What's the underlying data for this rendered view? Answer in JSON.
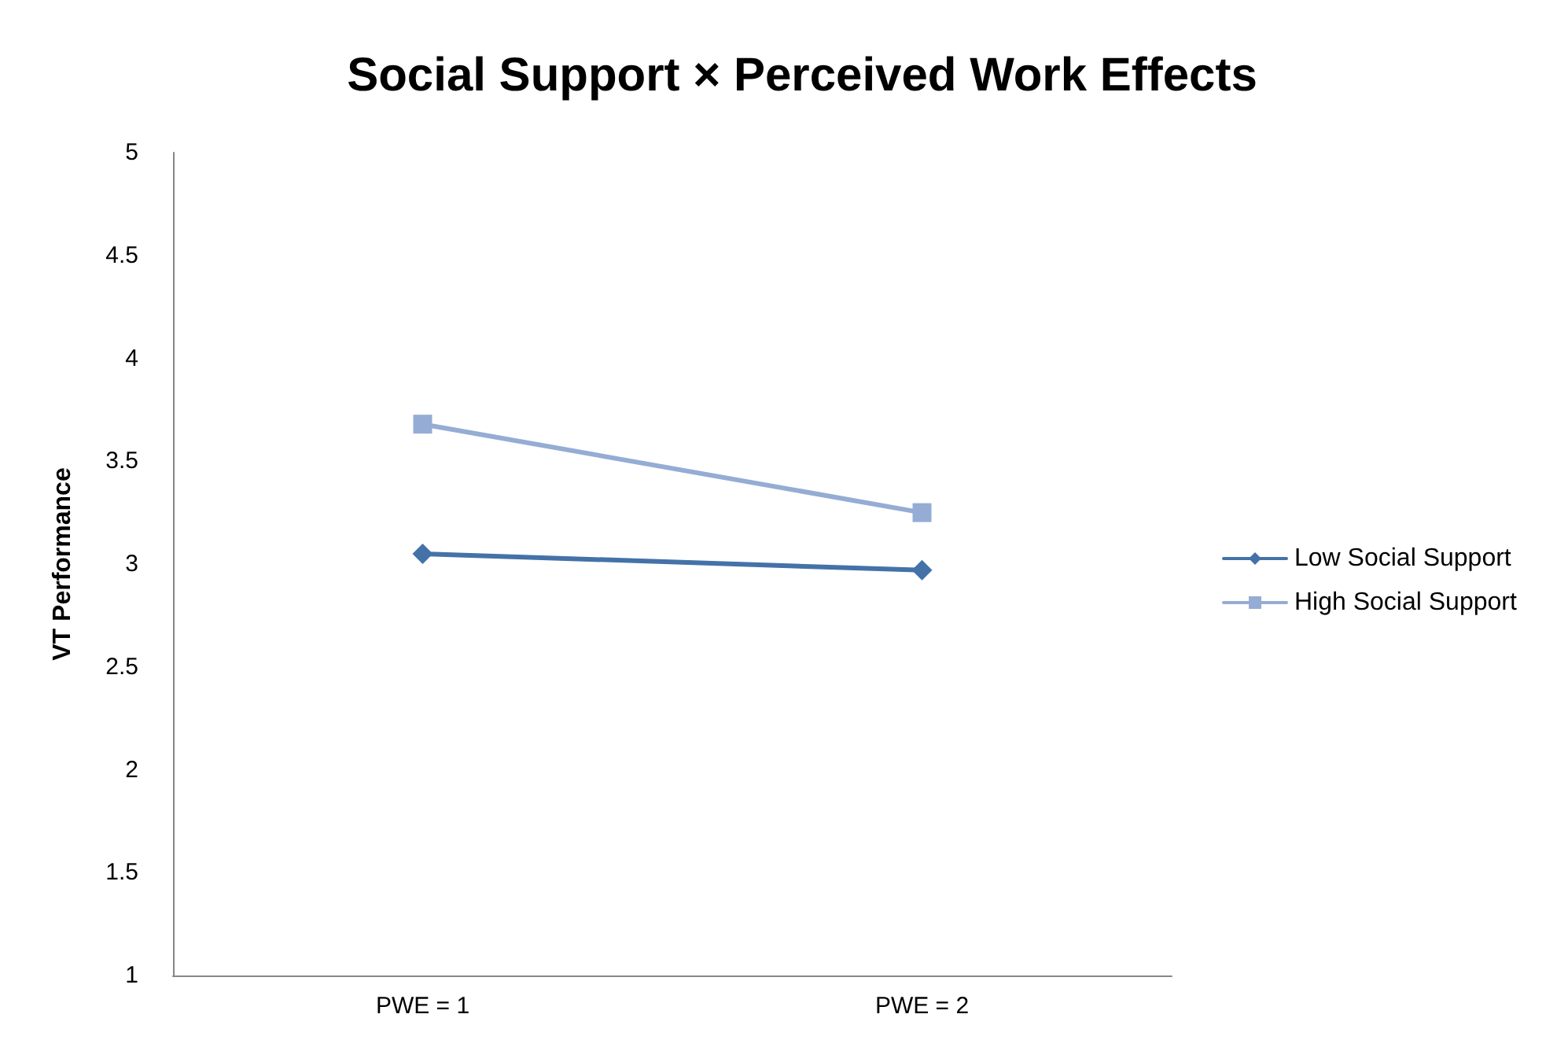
{
  "chart_data": {
    "type": "line",
    "title": "Social Support × Perceived Work Effects",
    "ylabel": "VT Performance",
    "categories": [
      "PWE = 1",
      "PWE = 2"
    ],
    "series": [
      {
        "name": "Low Social Support",
        "color": "#4472a8",
        "values": [
          3.05,
          2.97
        ],
        "marker": "diamond"
      },
      {
        "name": "High Social Support",
        "color": "#95acd4",
        "values": [
          3.68,
          3.25
        ],
        "marker": "square"
      }
    ],
    "ylim": [
      1,
      5
    ],
    "yticks": [
      1,
      1.5,
      2,
      2.5,
      3,
      3.5,
      4,
      4.5,
      5
    ],
    "grid": false,
    "legend": "right",
    "line_style": "solid"
  }
}
